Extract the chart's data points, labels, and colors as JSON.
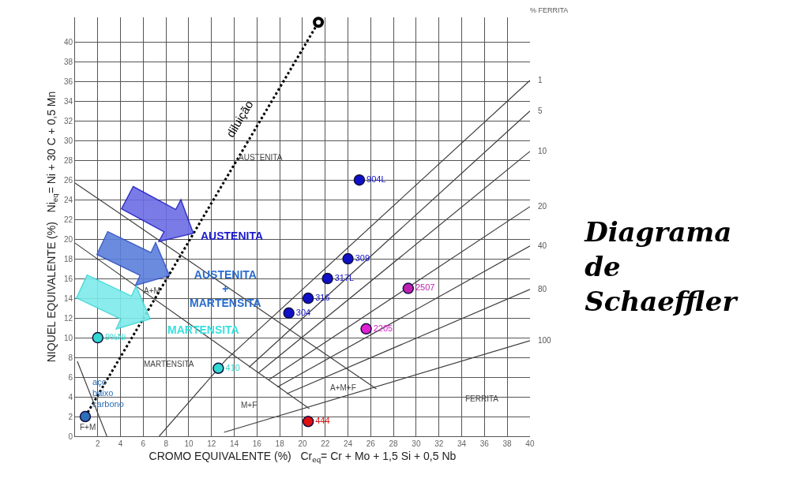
{
  "chart_data": {
    "type": "scatter",
    "title": "Diagrama\nde\nSchaeffler",
    "xlabel": "CROMO EQUIVALENTE (%)   Cr$_{eq}$= Cr + Mo + 1,5 Si + 0,5 Nb",
    "ylabel": "NIQUEL EQUIVALENTE (%)   Ni$_{eq}$= Ni + 30 C + 0,5 Mn",
    "xlim": [
      0,
      40
    ],
    "ylim": [
      0,
      42.5
    ],
    "xticks": [
      2,
      4,
      6,
      8,
      10,
      12,
      14,
      16,
      18,
      20,
      22,
      24,
      26,
      28,
      30,
      32,
      34,
      36,
      38,
      40
    ],
    "yticks": [
      0,
      2,
      4,
      6,
      8,
      10,
      12,
      14,
      16,
      18,
      20,
      22,
      24,
      26,
      28,
      30,
      32,
      34,
      36,
      38,
      40
    ],
    "grid": true,
    "legend": false,
    "series": [
      {
        "type": "line",
        "color": "#404040",
        "x": [
          0,
          26.5
        ],
        "values": [
          25.7,
          4.8
        ]
      },
      {
        "type": "line",
        "color": "#404040",
        "x": [
          0,
          20.6
        ],
        "values": [
          19.6,
          2.8
        ]
      },
      {
        "type": "line",
        "color": "#404040",
        "x": [
          0.2,
          2.8
        ],
        "values": [
          7.6,
          0
        ]
      },
      {
        "type": "line",
        "name": "1",
        "color": "#404040",
        "x": [
          7.4,
          13.3,
          40
        ],
        "values": [
          0,
          7.8,
          36.1
        ]
      },
      {
        "type": "line",
        "name": "5",
        "color": "#404040",
        "x": [
          15.3,
          40
        ],
        "values": [
          7.0,
          33
        ]
      },
      {
        "type": "line",
        "name": "10",
        "color": "#404040",
        "x": [
          16.1,
          40
        ],
        "values": [
          6.4,
          28.9
        ]
      },
      {
        "type": "line",
        "name": "20",
        "color": "#404040",
        "x": [
          17,
          40
        ],
        "values": [
          5.7,
          23.3
        ]
      },
      {
        "type": "line",
        "name": "40",
        "color": "#404040",
        "x": [
          17.8,
          40
        ],
        "values": [
          5.0,
          19.3
        ]
      },
      {
        "type": "line",
        "name": "80",
        "color": "#404040",
        "x": [
          18.6,
          40
        ],
        "values": [
          4.3,
          14.9
        ]
      },
      {
        "type": "line",
        "name": "100",
        "color": "#404040",
        "x": [
          13.1,
          40
        ],
        "values": [
          0.4,
          9.7
        ]
      },
      {
        "type": "line",
        "name": "diluição",
        "color": "#000000",
        "line_style": "dotted",
        "x": [
          0.9,
          21.4
        ],
        "values": [
          2,
          42
        ]
      },
      {
        "color": "#000000",
        "marker": "circle",
        "x": [
          21.4
        ],
        "values": [
          42
        ]
      },
      {
        "name": "904L",
        "color": "#1010c8",
        "marker": "circle",
        "x": [
          25
        ],
        "values": [
          26
        ]
      },
      {
        "name": "309",
        "color": "#1010c8",
        "marker": "circle",
        "x": [
          24
        ],
        "values": [
          18
        ]
      },
      {
        "name": "317L",
        "color": "#1010c8",
        "marker": "circle",
        "x": [
          22.2
        ],
        "values": [
          16
        ]
      },
      {
        "name": "316",
        "color": "#1010c8",
        "marker": "circle",
        "x": [
          20.5
        ],
        "values": [
          14
        ]
      },
      {
        "name": "304",
        "color": "#1010c8",
        "marker": "circle",
        "x": [
          18.8
        ],
        "values": [
          12.5
        ]
      },
      {
        "name": "2507",
        "color": "#c020b0",
        "marker": "circle",
        "x": [
          29.3
        ],
        "values": [
          15
        ]
      },
      {
        "name": "2205",
        "color": "#e020d0",
        "marker": "circle",
        "x": [
          25.6
        ],
        "values": [
          10.9
        ]
      },
      {
        "name": "444",
        "color": "#e01010",
        "marker": "circle",
        "x": [
          20.5
        ],
        "values": [
          1.5
        ]
      },
      {
        "name": "410",
        "color": "#30d8d0",
        "marker": "circle",
        "x": [
          12.6
        ],
        "values": [
          6.9
        ]
      },
      {
        "name": "9%Ni",
        "color": "#30d8d0",
        "marker": "circle",
        "x": [
          2
        ],
        "values": [
          10
        ]
      },
      {
        "name": "aço\nbaixo\ncarbono",
        "color": "#2e6fb8",
        "marker": "circle",
        "x": [
          0.9
        ],
        "values": [
          2
        ]
      }
    ],
    "annotations": [
      "AUSTENITA",
      "AUSTENITA\n+\nMARTENSITA",
      "MARTENSITA",
      "AUSTENITA",
      "MARTENSITA",
      "A+M",
      "M+F",
      "A+M+F",
      "FERRITA",
      "F+M",
      "% FERRITA"
    ]
  }
}
